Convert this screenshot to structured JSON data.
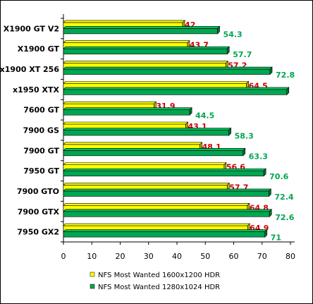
{
  "chart_data": {
    "type": "bar",
    "orientation": "horizontal",
    "categories": [
      "X1900 GT V2",
      "X1900 GT",
      "x1900 XT 256",
      "x1950 XTX",
      "7600 GT",
      "7900 GS",
      "7900 GT",
      "7950 GT",
      "7900 GTO",
      "7900 GTX",
      "7950 GX2"
    ],
    "series": [
      {
        "name": "NFS Most Wanted 1600x1200 HDR",
        "color": "#ffff00",
        "label_color": "#cc0000",
        "values": [
          42,
          43.7,
          57.2,
          64.5,
          31.9,
          43.1,
          48.1,
          56.6,
          57.7,
          64.8,
          64.9
        ],
        "value_labels": [
          "42",
          "43.7",
          "57.2",
          "64.5",
          "31.9",
          "43.1",
          "48.1",
          "56.6",
          "57.7",
          "64.8",
          "64.9"
        ]
      },
      {
        "name": "NFS Most Wanted 1280x1024 HDR",
        "color": "#00a651",
        "label_color": "#00a651",
        "values": [
          54.3,
          57.7,
          72.8,
          78.7,
          44.5,
          58.3,
          63.3,
          70.6,
          72.4,
          72.6,
          71
        ],
        "value_labels": [
          "54.3",
          "57.7",
          "72.8",
          "",
          "44.5",
          "58.3",
          "63.3",
          "70.6",
          "72.4",
          "72.6",
          "71"
        ]
      }
    ],
    "xlim": [
      0,
      80
    ],
    "xticks": [
      "0",
      "10",
      "20",
      "30",
      "40",
      "50",
      "60",
      "70",
      "80"
    ],
    "grid": false,
    "legend_position": "bottom"
  }
}
